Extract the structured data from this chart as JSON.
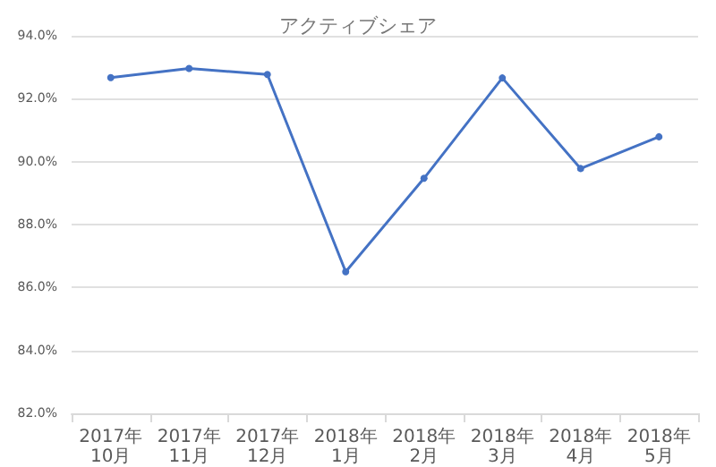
{
  "chart_data": {
    "type": "line",
    "title": "アクティブシェア",
    "categories": [
      "2017年10月",
      "2017年11月",
      "2017年12月",
      "2018年1月",
      "2018年2月",
      "2018年3月",
      "2018年4月",
      "2018年5月"
    ],
    "series": [
      {
        "color": "#4472c4",
        "values": [
          92.67,
          92.96,
          92.77,
          86.5,
          89.47,
          92.66,
          89.78,
          90.79
        ]
      }
    ],
    "ylim": [
      82,
      94
    ],
    "yticks": [
      {
        "value": 82,
        "label": "82.0%"
      },
      {
        "value": 84,
        "label": "84.0%"
      },
      {
        "value": 86,
        "label": "86.0%"
      },
      {
        "value": 88,
        "label": "88.0%"
      },
      {
        "value": 90,
        "label": "90.0%"
      },
      {
        "value": 92,
        "label": "92.0%"
      },
      {
        "value": 94,
        "label": "94.0%"
      }
    ],
    "grid": "y",
    "marker": "circle",
    "line_style": "solid"
  }
}
